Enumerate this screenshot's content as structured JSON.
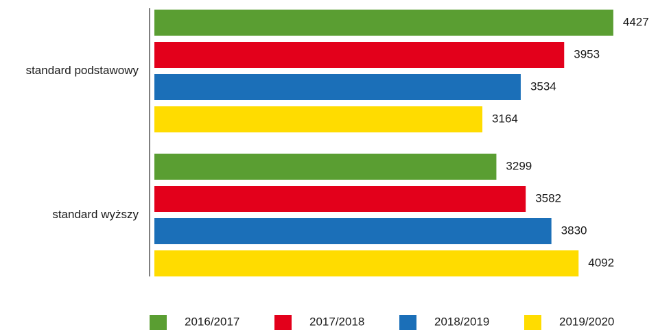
{
  "chart_data": {
    "type": "bar",
    "orientation": "horizontal",
    "categories": [
      "standard podstawowy",
      "standard wyższy"
    ],
    "series": [
      {
        "name": "2016/2017",
        "color": "#5a9e32",
        "values": [
          4427,
          3299
        ]
      },
      {
        "name": "2017/2018",
        "color": "#e3001b",
        "values": [
          3953,
          3582
        ]
      },
      {
        "name": "2018/2019",
        "color": "#1b6fb8",
        "values": [
          3534,
          3830
        ]
      },
      {
        "name": "2019/2020",
        "color": "#ffdc00",
        "values": [
          3164,
          4092
        ]
      }
    ],
    "xlim": [
      0,
      4600
    ],
    "legend": "bottom"
  }
}
